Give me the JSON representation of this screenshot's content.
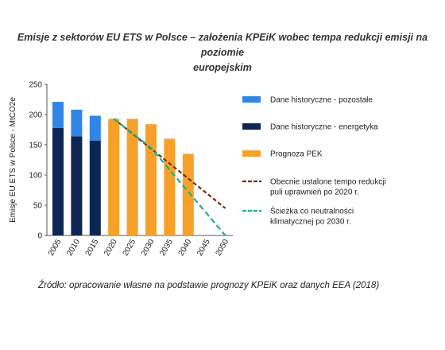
{
  "title_line1": "Emisje z sektorów EU ETS w Polsce – założenia KPEiK wobec tempa redukcji emisji na poziomie",
  "title_line2": "europejskim",
  "source": "Źródło: opracowanie własne na podstawie prognozy KPEiK oraz danych EEA (2018)",
  "chart_data": {
    "type": "bar",
    "ylabel": "Emisje EU ETS w Polsce - MtCO2e",
    "xlabel": "",
    "ylim": [
      0,
      250
    ],
    "yticks": [
      0,
      50,
      100,
      150,
      200,
      250
    ],
    "categories": [
      "2005",
      "2010",
      "2015",
      "2020",
      "2025",
      "2030",
      "2035",
      "2040",
      "2045",
      "2050"
    ],
    "series": [
      {
        "name": "Dane historyczne - energetyka",
        "kind": "bar",
        "stack": "hist",
        "color": "#0d2654",
        "values": [
          178,
          164,
          157,
          null,
          null,
          null,
          null,
          null,
          null,
          null
        ]
      },
      {
        "name": "Dane historyczne - pozostałe",
        "kind": "bar",
        "stack": "hist",
        "color": "#2f86e6",
        "values": [
          43,
          44,
          41,
          null,
          null,
          null,
          null,
          null,
          null,
          null
        ]
      },
      {
        "name": "Prognoza PEK",
        "kind": "bar",
        "stack": "forecast",
        "color": "#f7a12a",
        "values": [
          null,
          null,
          null,
          193,
          193,
          184,
          160,
          135,
          null,
          null
        ]
      },
      {
        "name": "Obecnie ustalone tempo redukcji puli uprawnień po 2020 r.",
        "kind": "line",
        "dash": "5,3",
        "color": "#7b2c0c",
        "points": [
          [
            "2020",
            193
          ],
          [
            "2050",
            45
          ]
        ]
      },
      {
        "name": "Ścieżka co neutralności klimatycznej po 2030 r.",
        "kind": "line",
        "dash": "7,4",
        "color": "#1daf86",
        "points": [
          [
            "2020",
            193
          ],
          [
            "2030",
            145
          ],
          [
            "2050",
            0
          ]
        ]
      }
    ],
    "legend_placement": "right",
    "legend": [
      {
        "label": "Dane historyczne - pozostałe",
        "swatch": "box",
        "color": "#2f86e6"
      },
      {
        "label": "Dane historyczne - energetyka",
        "swatch": "box",
        "color": "#0d2654"
      },
      {
        "label": "Prognoza PEK",
        "swatch": "box",
        "color": "#f7a12a"
      },
      {
        "label": [
          "Obecnie ustalone tempo redukcji",
          "puli uprawnień po 2020 r."
        ],
        "swatch": "dash",
        "color": "#7b2c0c"
      },
      {
        "label": [
          "Ścieżka co neutralności",
          "klimatycznej po 2030 r."
        ],
        "swatch": "dash",
        "color": "#1daf86"
      }
    ],
    "grid": false
  }
}
